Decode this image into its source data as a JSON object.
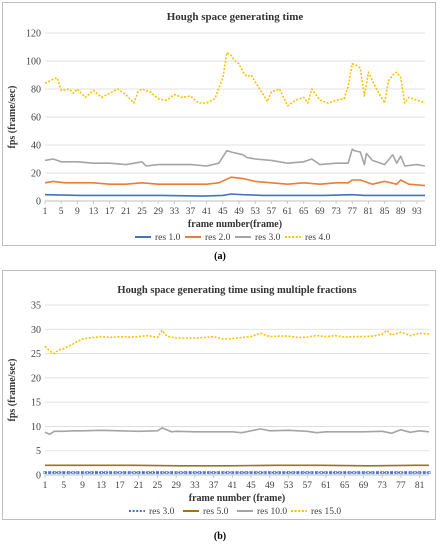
{
  "captions": {
    "a": "(a)",
    "b": "(b)"
  },
  "chart_data": [
    {
      "type": "line",
      "title": "Hough space generating time",
      "xlabel": "frame number(frame)",
      "ylabel": "fps (frame/sec)",
      "ylim": [
        0,
        120
      ],
      "yticks": [
        "0",
        "20",
        "40",
        "60",
        "80",
        "100",
        "120"
      ],
      "xticks": [
        "1",
        "5",
        "9",
        "13",
        "17",
        "21",
        "25",
        "29",
        "33",
        "37",
        "41",
        "45",
        "49",
        "53",
        "57",
        "61",
        "65",
        "69",
        "73",
        "77",
        "81",
        "85",
        "89",
        "93"
      ],
      "x_range": [
        1,
        95
      ],
      "grid": true,
      "legend_position": "bottom",
      "series": [
        {
          "name": "res 1.0",
          "color": "#4472c4",
          "dash": "solid",
          "x": [
            1,
            10,
            20,
            30,
            40,
            45,
            47,
            50,
            55,
            60,
            70,
            77,
            80,
            85,
            90,
            95
          ],
          "y": [
            4.5,
            4,
            4,
            4,
            3.5,
            4,
            5,
            4.5,
            4,
            4,
            4,
            4.5,
            4,
            4,
            4,
            4
          ]
        },
        {
          "name": "res 2.0",
          "color": "#ed7d31",
          "dash": "solid",
          "x": [
            1,
            3,
            6,
            9,
            13,
            17,
            21,
            25,
            29,
            33,
            37,
            41,
            44,
            47,
            50,
            53,
            57,
            61,
            65,
            69,
            73,
            76,
            77,
            79,
            80,
            82,
            85,
            88,
            89,
            91,
            95
          ],
          "y": [
            13,
            14,
            13,
            13,
            13,
            12,
            12,
            13,
            12,
            12,
            12,
            12,
            13,
            17,
            16,
            14,
            13,
            12,
            13,
            12,
            13,
            13,
            15,
            15,
            14,
            12,
            14,
            12,
            15,
            12,
            11
          ]
        },
        {
          "name": "res 3.0",
          "color": "#a5a5a5",
          "dash": "solid",
          "x": [
            1,
            3,
            5,
            9,
            13,
            17,
            21,
            25,
            26,
            29,
            33,
            37,
            41,
            44,
            46,
            47,
            50,
            51,
            53,
            57,
            61,
            65,
            67,
            69,
            73,
            76,
            77,
            77.5,
            79,
            80,
            80.5,
            82,
            85,
            87,
            88,
            89,
            90,
            93,
            95
          ],
          "y": [
            29,
            30,
            28,
            28,
            27,
            27,
            26,
            28,
            25,
            26,
            26,
            26,
            25,
            27,
            36,
            35,
            33,
            31,
            30,
            29,
            27,
            28,
            30,
            26,
            27,
            27,
            37,
            36,
            35,
            26,
            34,
            29,
            26,
            33,
            27,
            32,
            25,
            26,
            25
          ]
        },
        {
          "name": "res 4.0",
          "color": "#ffc000",
          "dash": "dotted",
          "x": [
            1,
            3,
            4,
            5,
            7,
            8,
            9,
            11,
            13,
            15,
            17,
            19,
            21,
            23,
            24,
            25,
            27,
            29,
            31,
            33,
            35,
            37,
            39,
            41,
            43,
            45,
            46,
            47,
            48,
            49,
            50,
            51,
            52,
            53,
            55,
            56,
            57,
            59,
            61,
            63,
            65,
            66,
            67,
            69,
            71,
            73,
            75,
            76,
            77,
            78,
            79,
            80,
            81,
            83,
            85,
            86,
            87,
            88,
            89,
            90,
            91,
            93,
            95
          ],
          "y": [
            84,
            87,
            88,
            79,
            80,
            77,
            80,
            74,
            79,
            74,
            77,
            80,
            76,
            70,
            78,
            80,
            78,
            73,
            72,
            76,
            74,
            75,
            70,
            70,
            73,
            88,
            106,
            104,
            100,
            98,
            92,
            89,
            90,
            85,
            76,
            71,
            78,
            80,
            68,
            72,
            74,
            70,
            80,
            72,
            70,
            72,
            73,
            82,
            98,
            97,
            95,
            75,
            92,
            80,
            70,
            86,
            90,
            92,
            88,
            70,
            74,
            72,
            70
          ]
        }
      ]
    },
    {
      "type": "line",
      "title": "Hough space generating time using multiple fractions",
      "xlabel": "frame number (frame)",
      "ylabel": "fps (frame/sec)",
      "ylim": [
        0,
        35
      ],
      "yticks": [
        "0",
        "5",
        "10",
        "15",
        "20",
        "25",
        "30",
        "35"
      ],
      "xticks": [
        "1",
        "5",
        "9",
        "13",
        "17",
        "21",
        "25",
        "29",
        "33",
        "37",
        "41",
        "45",
        "49",
        "53",
        "57",
        "61",
        "65",
        "69",
        "73",
        "77",
        "81"
      ],
      "x_range": [
        1,
        83
      ],
      "grid": true,
      "legend_position": "bottom",
      "series": [
        {
          "name": "res 3.0",
          "color": "#4472c4",
          "dash": "dotted",
          "markers": true,
          "x": [
            1,
            5,
            10,
            15,
            20,
            25,
            30,
            35,
            40,
            45,
            50,
            55,
            60,
            65,
            70,
            75,
            80,
            83
          ],
          "y": [
            0.5,
            0.5,
            0.5,
            0.5,
            0.5,
            0.5,
            0.5,
            0.5,
            0.5,
            0.5,
            0.5,
            0.5,
            0.5,
            0.5,
            0.5,
            0.5,
            0.5,
            0.5
          ]
        },
        {
          "name": "res 5.0",
          "color": "#a0711e",
          "dash": "solid",
          "x": [
            1,
            10,
            20,
            30,
            40,
            50,
            60,
            70,
            80,
            83
          ],
          "y": [
            2,
            2,
            2,
            1.9,
            1.9,
            2,
            2,
            1.9,
            2,
            2
          ]
        },
        {
          "name": "res 10.0",
          "color": "#a5a5a5",
          "dash": "solid",
          "x": [
            1,
            2,
            3,
            5,
            7,
            9,
            13,
            17,
            21,
            25,
            26,
            28,
            29,
            33,
            37,
            41,
            43,
            45,
            47,
            49,
            53,
            57,
            59,
            61,
            65,
            69,
            73,
            75,
            77,
            79,
            81,
            83
          ],
          "y": [
            8.8,
            8.4,
            9,
            9,
            9.1,
            9.1,
            9.2,
            9.1,
            9,
            9.1,
            9.7,
            8.9,
            9,
            8.9,
            8.9,
            8.9,
            8.7,
            9.1,
            9.5,
            9.1,
            9.2,
            9,
            8.7,
            8.9,
            8.9,
            8.9,
            9,
            8.6,
            9.3,
            8.8,
            9.1,
            8.9
          ]
        },
        {
          "name": "res 15.0",
          "color": "#ffc000",
          "dash": "dotted",
          "x": [
            1,
            2,
            3,
            4,
            5,
            6,
            7,
            8,
            9,
            11,
            13,
            15,
            17,
            19,
            21,
            23,
            25,
            26,
            27,
            29,
            31,
            33,
            35,
            37,
            39,
            41,
            43,
            45,
            47,
            49,
            51,
            53,
            55,
            57,
            59,
            61,
            63,
            65,
            67,
            69,
            71,
            73,
            74,
            75,
            77,
            79,
            81,
            83
          ],
          "y": [
            26.5,
            25.5,
            25,
            25.8,
            26,
            26.5,
            27,
            27.5,
            28,
            28.3,
            28.5,
            28.3,
            28.5,
            28.4,
            28.5,
            28.7,
            28.3,
            29.8,
            28.6,
            28.2,
            28.2,
            28.2,
            28.3,
            28.5,
            28,
            28.1,
            28.3,
            28.5,
            29.2,
            28.5,
            28.6,
            28.6,
            28.3,
            28.4,
            28.7,
            28.5,
            28.7,
            28.4,
            28.5,
            28.5,
            28.6,
            29,
            29.8,
            28.8,
            29.4,
            28.7,
            29.2,
            29
          ]
        }
      ]
    }
  ]
}
